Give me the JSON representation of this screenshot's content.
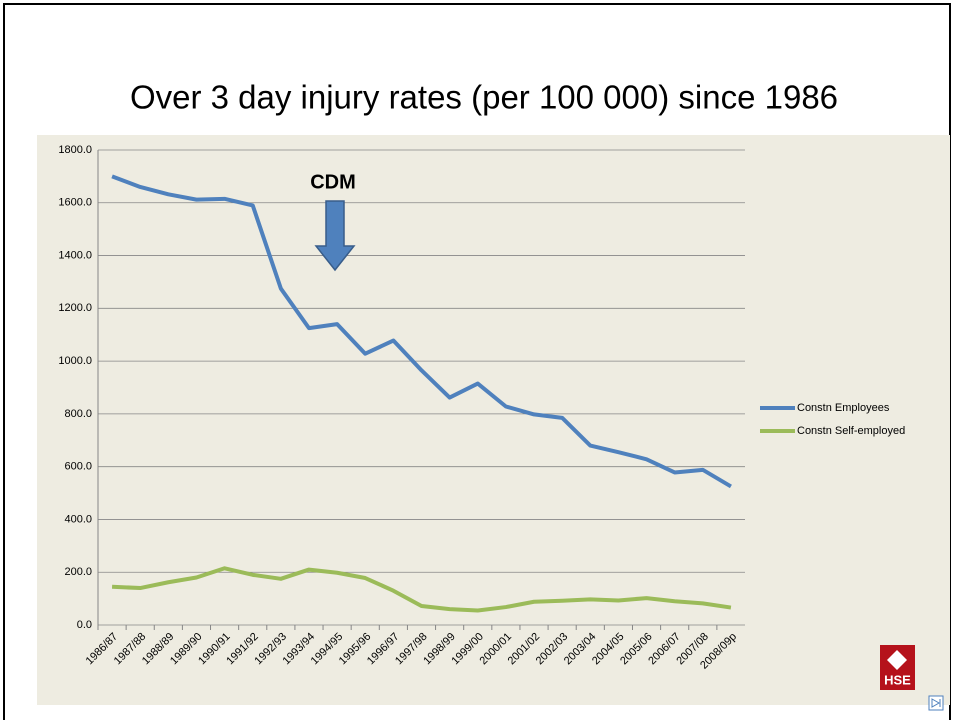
{
  "chart_data": {
    "type": "line",
    "title": "Over 3 day injury rates (per 100 000) since 1986",
    "annotation": "CDM",
    "categories": [
      "1986/87",
      "1987/88",
      "1988/89",
      "1989/90",
      "1990/91",
      "1991/92",
      "1992/93",
      "1993/94",
      "1994/95",
      "1995/96",
      "1996/97",
      "1997/98",
      "1998/99",
      "1999/00",
      "2000/01",
      "2001/02",
      "2002/03",
      "2003/04",
      "2004/05",
      "2005/06",
      "2006/07",
      "2007/08",
      "2008/09p"
    ],
    "series": [
      {
        "name": "Constn Employees",
        "color": "#4f81bd",
        "values": [
          1700,
          1660,
          1632,
          1612,
          1615,
          1590,
          1275,
          1125,
          1140,
          1028,
          1078,
          965,
          862,
          915,
          828,
          798,
          785,
          680,
          655,
          628,
          578,
          588,
          525
        ]
      },
      {
        "name": "Constn Self-employed",
        "color": "#9bbb59",
        "values": [
          145,
          140,
          162,
          180,
          215,
          190,
          175,
          210,
          198,
          178,
          130,
          72,
          60,
          55,
          68,
          88,
          92,
          97,
          93,
          102,
          90,
          82,
          66
        ]
      }
    ],
    "ylim": [
      0,
      1800
    ],
    "yticks": [
      {
        "value": 0,
        "label": "0.0"
      },
      {
        "value": 200,
        "label": "200.0"
      },
      {
        "value": 400,
        "label": "400.0"
      },
      {
        "value": 600,
        "label": "600.0"
      },
      {
        "value": 800,
        "label": "800.0"
      },
      {
        "value": 1000,
        "label": "1000.0"
      },
      {
        "value": 1200,
        "label": "1200.0"
      },
      {
        "value": 1400,
        "label": "1400.0"
      },
      {
        "value": 1600,
        "label": "1600.0"
      },
      {
        "value": 1800,
        "label": "1800.0"
      }
    ],
    "grid": true,
    "legend": "right"
  },
  "logo": "HSE"
}
